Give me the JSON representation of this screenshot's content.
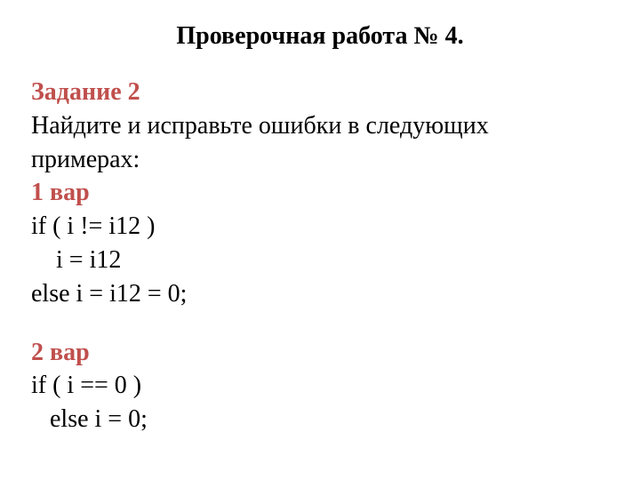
{
  "title": "Проверочная работа № 4.",
  "task": {
    "header": "Задание 2",
    "instruction_line1": "Найдите и исправьте ошибки в следующих",
    "instruction_line2": "примерах:",
    "variant1": {
      "header": "1 вар",
      "line1": "if ( i != i12 )",
      "line2": "    i = i12",
      "line3": "else i = i12 = 0;"
    },
    "variant2": {
      "header": "2 вар",
      "line1": "if ( i == 0 )",
      "line2": "   else i = 0;"
    }
  },
  "colors": {
    "accent": "#c0504d",
    "text": "#000000",
    "background": "#ffffff"
  },
  "typography": {
    "font_family": "Times New Roman",
    "title_size": 28,
    "body_size": 28
  }
}
